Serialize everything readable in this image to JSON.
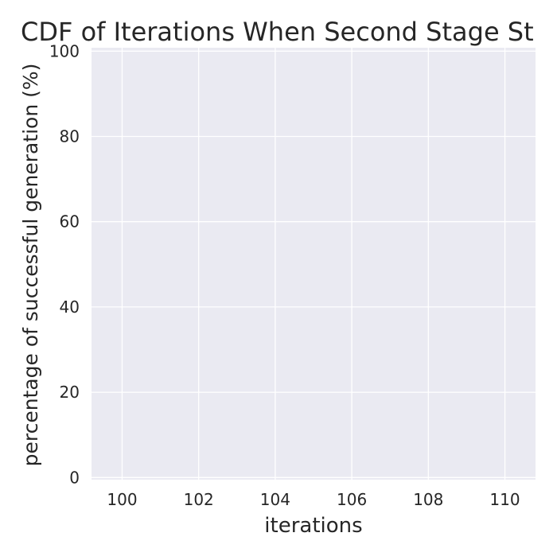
{
  "chart_data": {
    "type": "line",
    "title": "CDF of Iterations When Second Stage St",
    "xlabel": "iterations",
    "ylabel": "percentage of successful generation (%)",
    "xlim": [
      99.2,
      110.8
    ],
    "ylim": [
      -0.5,
      100.8
    ],
    "x_ticks": [
      100,
      102,
      104,
      106,
      108,
      110
    ],
    "y_ticks": [
      0,
      20,
      40,
      60,
      80,
      100
    ],
    "grid": true,
    "series": [],
    "colors": {
      "plot_background": "#eaeaf2",
      "grid": "#ffffff",
      "text": "#262626"
    }
  }
}
